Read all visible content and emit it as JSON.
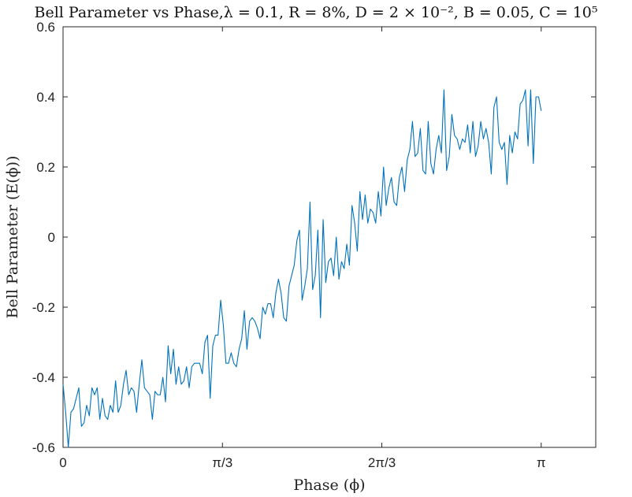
{
  "chart_data": {
    "type": "line",
    "title": "Bell Parameter vs Phase,λ = 0.1, R = 8%, D = 2 × 10⁻², B = 0.05, C = 10⁵",
    "xlabel": "Phase (ϕ)",
    "ylabel": "Bell Parameter (E(ϕ))",
    "xlim": [
      0,
      3.5
    ],
    "ylim": [
      -0.6,
      0.6
    ],
    "x_scale": "linear",
    "grid": false,
    "legend": "none",
    "x_ticks": [
      {
        "value": 0,
        "label": "0"
      },
      {
        "value": 1.0472,
        "label": "π/3"
      },
      {
        "value": 2.0944,
        "label": "2π/3"
      },
      {
        "value": 3.1416,
        "label": "π"
      }
    ],
    "y_ticks": [
      {
        "value": -0.6,
        "label": "-0.6"
      },
      {
        "value": -0.4,
        "label": "-0.4"
      },
      {
        "value": -0.2,
        "label": "-0.2"
      },
      {
        "value": 0,
        "label": "0"
      },
      {
        "value": 0.2,
        "label": "0.2"
      },
      {
        "value": 0.4,
        "label": "0.4"
      },
      {
        "value": 0.6,
        "label": "0.6"
      }
    ],
    "series": [
      {
        "color": "#0072BD",
        "x_start": 0,
        "x_end": 3.1416,
        "values": [
          -0.42,
          -0.5,
          -0.6,
          -0.5,
          -0.49,
          -0.46,
          -0.43,
          -0.54,
          -0.53,
          -0.48,
          -0.51,
          -0.43,
          -0.45,
          -0.43,
          -0.52,
          -0.46,
          -0.51,
          -0.52,
          -0.48,
          -0.5,
          -0.41,
          -0.5,
          -0.48,
          -0.42,
          -0.38,
          -0.45,
          -0.43,
          -0.44,
          -0.5,
          -0.42,
          -0.35,
          -0.43,
          -0.44,
          -0.45,
          -0.52,
          -0.44,
          -0.45,
          -0.45,
          -0.4,
          -0.47,
          -0.31,
          -0.39,
          -0.32,
          -0.42,
          -0.37,
          -0.42,
          -0.41,
          -0.37,
          -0.43,
          -0.37,
          -0.36,
          -0.36,
          -0.36,
          -0.39,
          -0.3,
          -0.28,
          -0.46,
          -0.31,
          -0.28,
          -0.28,
          -0.18,
          -0.25,
          -0.36,
          -0.36,
          -0.33,
          -0.36,
          -0.37,
          -0.32,
          -0.29,
          -0.21,
          -0.32,
          -0.24,
          -0.23,
          -0.24,
          -0.26,
          -0.29,
          -0.2,
          -0.22,
          -0.19,
          -0.19,
          -0.23,
          -0.16,
          -0.12,
          -0.16,
          -0.23,
          -0.24,
          -0.14,
          -0.11,
          -0.08,
          -0.01,
          0.02,
          -0.18,
          -0.14,
          -0.09,
          0.1,
          -0.15,
          -0.11,
          0.02,
          -0.23,
          0.05,
          -0.13,
          -0.07,
          -0.06,
          -0.11,
          0.0,
          -0.12,
          -0.07,
          -0.09,
          -0.02,
          -0.08,
          0.09,
          0.04,
          -0.04,
          0.13,
          0.05,
          0.12,
          0.04,
          0.08,
          0.07,
          0.04,
          0.13,
          0.06,
          0.2,
          0.09,
          0.14,
          0.17,
          0.1,
          0.09,
          0.17,
          0.2,
          0.13,
          0.22,
          0.25,
          0.33,
          0.23,
          0.24,
          0.31,
          0.19,
          0.18,
          0.33,
          0.21,
          0.18,
          0.25,
          0.29,
          0.24,
          0.42,
          0.19,
          0.23,
          0.35,
          0.29,
          0.28,
          0.25,
          0.28,
          0.27,
          0.32,
          0.24,
          0.33,
          0.23,
          0.26,
          0.33,
          0.28,
          0.31,
          0.27,
          0.18,
          0.37,
          0.4,
          0.27,
          0.25,
          0.27,
          0.15,
          0.29,
          0.24,
          0.3,
          0.28,
          0.38,
          0.39,
          0.42,
          0.26,
          0.42,
          0.21,
          0.4,
          0.4,
          0.36
        ]
      }
    ]
  }
}
